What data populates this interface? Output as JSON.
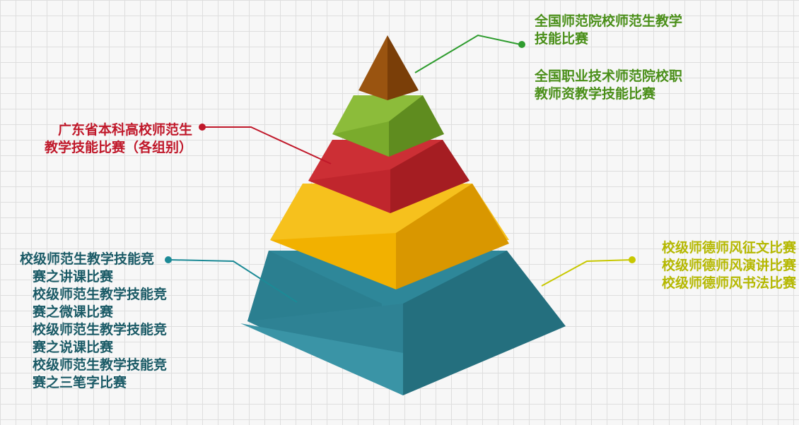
{
  "colors": {
    "top": "#8a4a0c",
    "green": "#76a72c",
    "red": "#c0262d",
    "yellow": "#f2b100",
    "blue": "#2a7d8e",
    "green_text": "#4a8f19",
    "red_text": "#c0182a",
    "yellow_text": "#b5b800",
    "blue_text": "#1a5a66"
  },
  "labels": {
    "top_national_normal": [
      "全国师范院校师范生教学",
      "技能比赛"
    ],
    "top_national_vocational": [
      "全国职业技术师范院校职",
      "教师资教学技能比赛"
    ],
    "red_provincial": [
      "广东省本科高校师范生",
      "教学技能比赛（各组别）"
    ],
    "yellow_ethics": [
      "校级师德师风征文比赛",
      "校级师德师风演讲比赛",
      "校级师德师风书法比赛"
    ],
    "blue_school": [
      "校级师范生教学技能竞",
      "赛之讲课比赛",
      "校级师范生教学技能竞",
      "赛之微课比赛",
      "校级师范生教学技能竞",
      "赛之说课比赛",
      "校级师范生教学技能竞",
      "赛之三笔字比赛"
    ]
  }
}
